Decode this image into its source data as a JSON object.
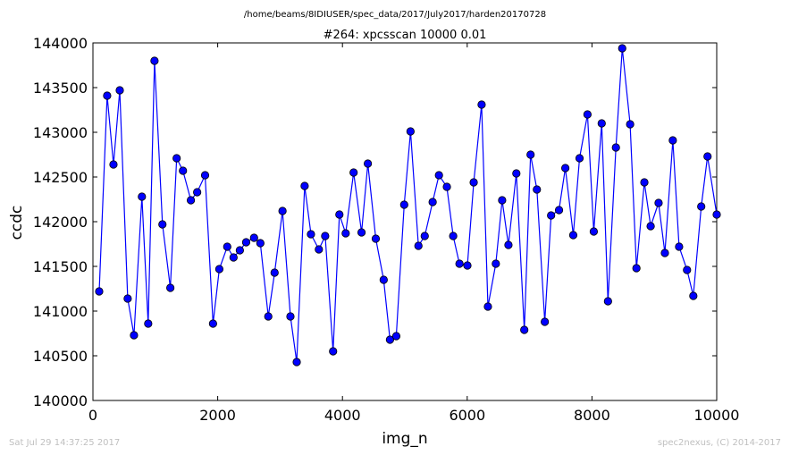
{
  "header": {
    "suptitle": "/home/beams/8IDIUSER/spec_data/2017/July2017/harden20170728"
  },
  "footer": {
    "left": "Sat Jul 29 14:37:25 2017",
    "right": "spec2nexus, (C) 2014-2017"
  },
  "chart_data": {
    "type": "line",
    "title": "#264: xpcsscan 10000 0.01",
    "xlabel": "img_n",
    "ylabel": "ccdc",
    "xlim": [
      0,
      10000
    ],
    "ylim": [
      140000,
      144000
    ],
    "xticks": [
      0,
      2000,
      4000,
      6000,
      8000,
      10000
    ],
    "yticks": [
      140000,
      140500,
      141000,
      141500,
      142000,
      142500,
      143000,
      143500,
      144000
    ],
    "grid": false,
    "line_color": "#0000ff",
    "marker_color": "#0000ff",
    "series": [
      {
        "x": [
          100,
          228,
          329,
          430,
          557,
          658,
          785,
          886,
          987,
          1114,
          1241,
          1342,
          1443,
          1570,
          1671,
          1798,
          1925,
          2026,
          2153,
          2254,
          2355,
          2456,
          2583,
          2684,
          2811,
          2912,
          3039,
          3166,
          3267,
          3394,
          3495,
          3622,
          3723,
          3850,
          3951,
          4052,
          4179,
          4306,
          4407,
          4534,
          4661,
          4762,
          4863,
          4990,
          5091,
          5218,
          5319,
          5446,
          5547,
          5674,
          5775,
          5876,
          6003,
          6104,
          6231,
          6332,
          6459,
          6560,
          6661,
          6788,
          6915,
          7016,
          7117,
          7244,
          7345,
          7472,
          7573,
          7700,
          7801,
          7928,
          8029,
          8156,
          8257,
          8384,
          8485,
          8612,
          8713,
          8840,
          8941,
          9068,
          9169,
          9296,
          9397,
          9524,
          9625,
          9752,
          9853,
          10000
        ],
        "values": [
          141220,
          143410,
          142640,
          143470,
          141140,
          140730,
          142280,
          140860,
          143800,
          141970,
          141260,
          142710,
          142570,
          142240,
          142330,
          142520,
          140860,
          141470,
          141720,
          141600,
          141680,
          141770,
          141820,
          141760,
          140940,
          141430,
          142120,
          140940,
          140430,
          142400,
          141860,
          141690,
          141840,
          140550,
          142080,
          141870,
          142550,
          141880,
          142650,
          141810,
          141350,
          140680,
          140720,
          142190,
          143010,
          141730,
          141840,
          142220,
          142520,
          142390,
          141840,
          141530,
          141510,
          142440,
          143310,
          141050,
          141530,
          142240,
          141740,
          142540,
          140790,
          142750,
          142360,
          140880,
          142070,
          142130,
          142600,
          141850,
          142710,
          143200,
          141890,
          143100,
          141110,
          142830,
          143940,
          143090,
          141480,
          142440,
          141950,
          142210,
          141650,
          142910,
          141720,
          141460,
          141170,
          142170,
          142730,
          142080
        ]
      }
    ]
  }
}
